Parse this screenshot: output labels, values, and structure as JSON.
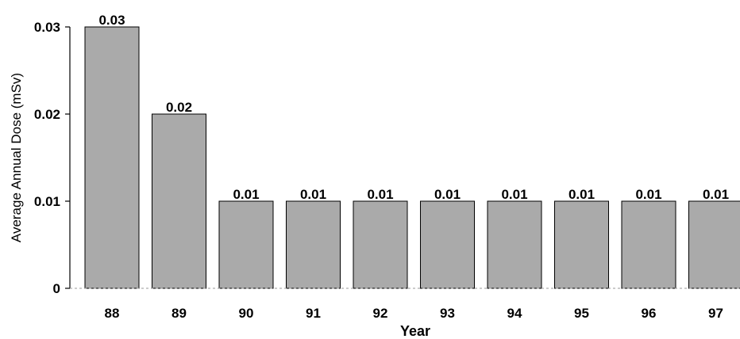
{
  "chart_data": {
    "type": "bar",
    "categories": [
      "88",
      "89",
      "90",
      "91",
      "92",
      "93",
      "94",
      "95",
      "96",
      "97"
    ],
    "values": [
      0.03,
      0.02,
      0.01,
      0.01,
      0.01,
      0.01,
      0.01,
      0.01,
      0.01,
      0.01
    ],
    "data_labels": [
      "0.03",
      "0.02",
      "0.01",
      "0.01",
      "0.01",
      "0.01",
      "0.01",
      "0.01",
      "0.01",
      "0.01"
    ],
    "xlabel": "Year",
    "ylabel": "Average Annual Dose (mSv)",
    "ylim": [
      0,
      0.03
    ],
    "yticks": [
      0,
      0.01,
      0.02,
      0.03
    ],
    "ytick_labels": [
      "0",
      "0.01",
      "0.02",
      "0.03"
    ],
    "grid": false,
    "legend": "none",
    "bar_color": "#aaaaaa",
    "bar_edge_color": "#000000"
  }
}
